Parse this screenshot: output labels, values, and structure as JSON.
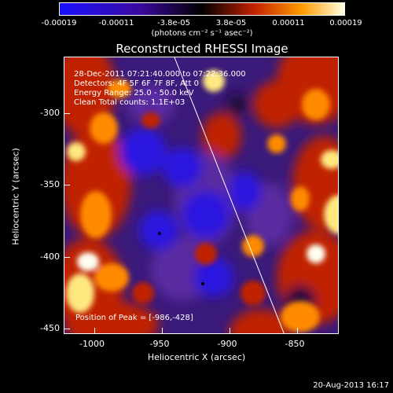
{
  "colorbar": {
    "tick_labels": [
      "-0.00019",
      "-0.00011",
      "-3.8e-05",
      "3.8e-05",
      "0.00011",
      "0.00019"
    ],
    "units": "(photons cm⁻² s⁻¹ asec⁻²)",
    "colors": [
      "#1a10ff",
      "#3a0aa0",
      "#000000",
      "#c02000",
      "#ff9a00",
      "#ffffe0"
    ]
  },
  "title": "Reconstructed RHESSI Image",
  "annotations": {
    "time_range": "28-Dec-2011 07:21:40.000 to 07:22:36.000",
    "detectors": "Detectors: 4F 5F 6F 7F 8F, Att 0",
    "energy_range": "Energy Range: 25.0 - 50.0 keV",
    "algorithm": "Clean     Total counts: 1.1E+03",
    "peak_position": "Position of Peak = [-986,-428]"
  },
  "axes": {
    "xlabel": "Heliocentric X (arcsec)",
    "ylabel": "Heliocentric Y (arcsec)",
    "x_ticks": [
      "-1000",
      "-950",
      "-900",
      "-850"
    ],
    "y_ticks": [
      "-300",
      "-350",
      "-400",
      "-450"
    ],
    "xlim": [
      -1021,
      -825
    ],
    "ylim": [
      -453,
      -281
    ]
  },
  "footer_date": "20-Aug-2013 16:17"
}
